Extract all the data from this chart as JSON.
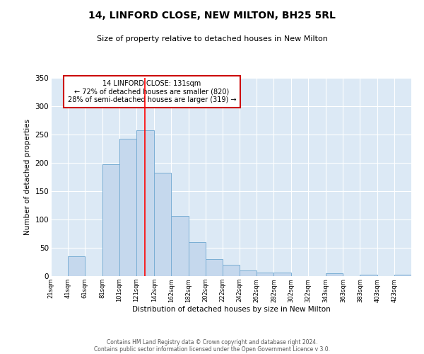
{
  "title": "14, LINFORD CLOSE, NEW MILTON, BH25 5RL",
  "subtitle": "Size of property relative to detached houses in New Milton",
  "xlabel": "Distribution of detached houses by size in New Milton",
  "ylabel": "Number of detached properties",
  "background_color": "#dce9f5",
  "bar_color": "#c5d8ed",
  "bar_edge_color": "#7aaed4",
  "red_line_x": 131,
  "annotation_title": "14 LINFORD CLOSE: 131sqm",
  "annotation_line1": "← 72% of detached houses are smaller (820)",
  "annotation_line2": "28% of semi-detached houses are larger (319) →",
  "footer1": "Contains HM Land Registry data © Crown copyright and database right 2024.",
  "footer2": "Contains public sector information licensed under the Open Government Licence v 3.0.",
  "bin_edges": [
    21,
    41,
    61,
    81,
    101,
    121,
    142,
    162,
    182,
    202,
    222,
    242,
    262,
    282,
    302,
    322,
    343,
    363,
    383,
    403,
    423,
    443
  ],
  "bin_counts": [
    0,
    35,
    0,
    198,
    242,
    258,
    183,
    106,
    60,
    30,
    20,
    10,
    6,
    6,
    0,
    0,
    5,
    0,
    2,
    0,
    2
  ],
  "ylim": [
    0,
    350
  ],
  "yticks": [
    0,
    50,
    100,
    150,
    200,
    250,
    300,
    350
  ],
  "tick_labels": [
    "21sqm",
    "41sqm",
    "61sqm",
    "81sqm",
    "101sqm",
    "121sqm",
    "142sqm",
    "162sqm",
    "182sqm",
    "202sqm",
    "222sqm",
    "242sqm",
    "262sqm",
    "282sqm",
    "302sqm",
    "322sqm",
    "343sqm",
    "363sqm",
    "383sqm",
    "403sqm",
    "423sqm"
  ]
}
